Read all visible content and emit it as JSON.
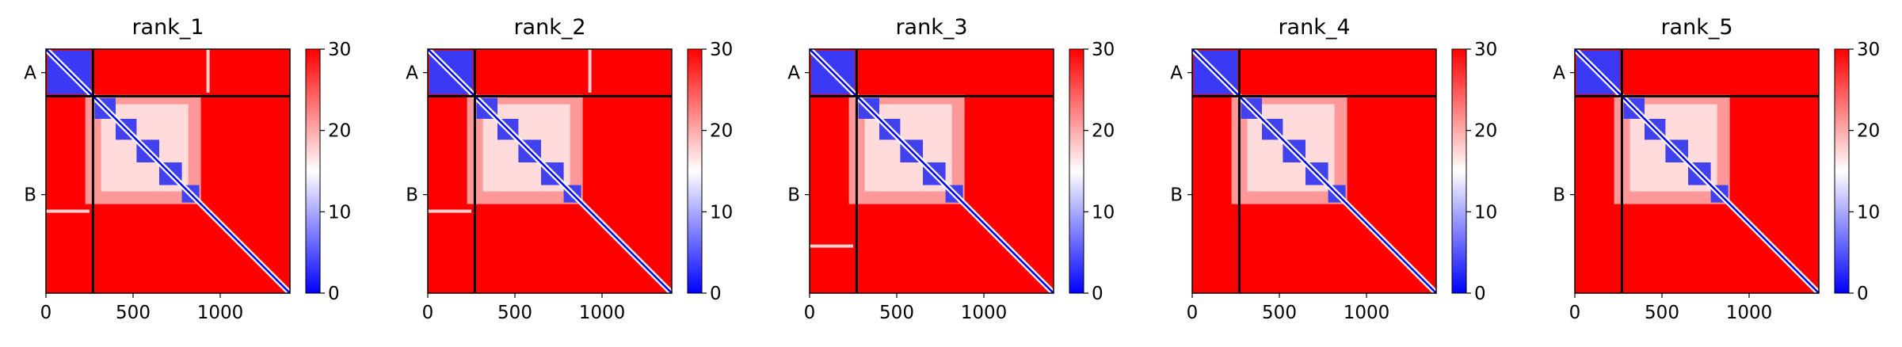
{
  "chart_data": [
    {
      "type": "heatmap",
      "title": "rank_1",
      "chain_labels": [
        "A",
        "B"
      ],
      "chain_boundary": 270,
      "xticks": [
        0,
        500,
        1000
      ],
      "xlim": [
        0,
        1400
      ],
      "colorbar": {
        "range": [
          0,
          30
        ],
        "ticks": [
          0,
          10,
          20,
          30
        ],
        "colors": [
          "#0000ff",
          "#ffffff",
          "#ff0000"
        ]
      },
      "domains": [
        [
          0,
          250
        ],
        [
          280,
          400
        ],
        [
          400,
          520
        ],
        [
          520,
          650
        ],
        [
          650,
          780
        ],
        [
          780,
          880
        ]
      ],
      "streaks": [
        {
          "orientation": "vertical",
          "position": 930,
          "from": 0,
          "to": 250
        },
        {
          "orientation": "horizontal",
          "position": 930,
          "from": 0,
          "to": 250
        }
      ]
    },
    {
      "type": "heatmap",
      "title": "rank_2",
      "chain_labels": [
        "A",
        "B"
      ],
      "chain_boundary": 270,
      "xticks": [
        0,
        500,
        1000
      ],
      "xlim": [
        0,
        1400
      ],
      "colorbar": {
        "range": [
          0,
          30
        ],
        "ticks": [
          0,
          10,
          20,
          30
        ],
        "colors": [
          "#0000ff",
          "#ffffff",
          "#ff0000"
        ]
      },
      "domains": [
        [
          0,
          250
        ],
        [
          280,
          400
        ],
        [
          400,
          520
        ],
        [
          520,
          650
        ],
        [
          650,
          780
        ],
        [
          780,
          880
        ]
      ],
      "streaks": [
        {
          "orientation": "vertical",
          "position": 930,
          "from": 0,
          "to": 250
        },
        {
          "orientation": "horizontal",
          "position": 930,
          "from": 0,
          "to": 250
        }
      ]
    },
    {
      "type": "heatmap",
      "title": "rank_3",
      "chain_labels": [
        "A",
        "B"
      ],
      "chain_boundary": 270,
      "xticks": [
        0,
        500,
        1000
      ],
      "xlim": [
        0,
        1400
      ],
      "colorbar": {
        "range": [
          0,
          30
        ],
        "ticks": [
          0,
          10,
          20,
          30
        ],
        "colors": [
          "#0000ff",
          "#ffffff",
          "#ff0000"
        ]
      },
      "domains": [
        [
          0,
          250
        ],
        [
          280,
          400
        ],
        [
          400,
          520
        ],
        [
          520,
          650
        ],
        [
          650,
          780
        ],
        [
          780,
          880
        ]
      ],
      "streaks": [
        {
          "orientation": "horizontal",
          "position": 1130,
          "from": 0,
          "to": 250
        }
      ]
    },
    {
      "type": "heatmap",
      "title": "rank_4",
      "chain_labels": [
        "A",
        "B"
      ],
      "chain_boundary": 270,
      "xticks": [
        0,
        500,
        1000
      ],
      "xlim": [
        0,
        1400
      ],
      "colorbar": {
        "range": [
          0,
          30
        ],
        "ticks": [
          0,
          10,
          20,
          30
        ],
        "colors": [
          "#0000ff",
          "#ffffff",
          "#ff0000"
        ]
      },
      "domains": [
        [
          0,
          250
        ],
        [
          280,
          400
        ],
        [
          400,
          520
        ],
        [
          520,
          650
        ],
        [
          650,
          780
        ],
        [
          780,
          880
        ]
      ],
      "streaks": []
    },
    {
      "type": "heatmap",
      "title": "rank_5",
      "chain_labels": [
        "A",
        "B"
      ],
      "chain_boundary": 270,
      "xticks": [
        0,
        500,
        1000
      ],
      "xlim": [
        0,
        1400
      ],
      "colorbar": {
        "range": [
          0,
          30
        ],
        "ticks": [
          0,
          10,
          20,
          30
        ],
        "colors": [
          "#0000ff",
          "#ffffff",
          "#ff0000"
        ]
      },
      "domains": [
        [
          0,
          250
        ],
        [
          280,
          400
        ],
        [
          400,
          520
        ],
        [
          520,
          650
        ],
        [
          650,
          780
        ],
        [
          780,
          880
        ]
      ],
      "streaks": []
    }
  ]
}
